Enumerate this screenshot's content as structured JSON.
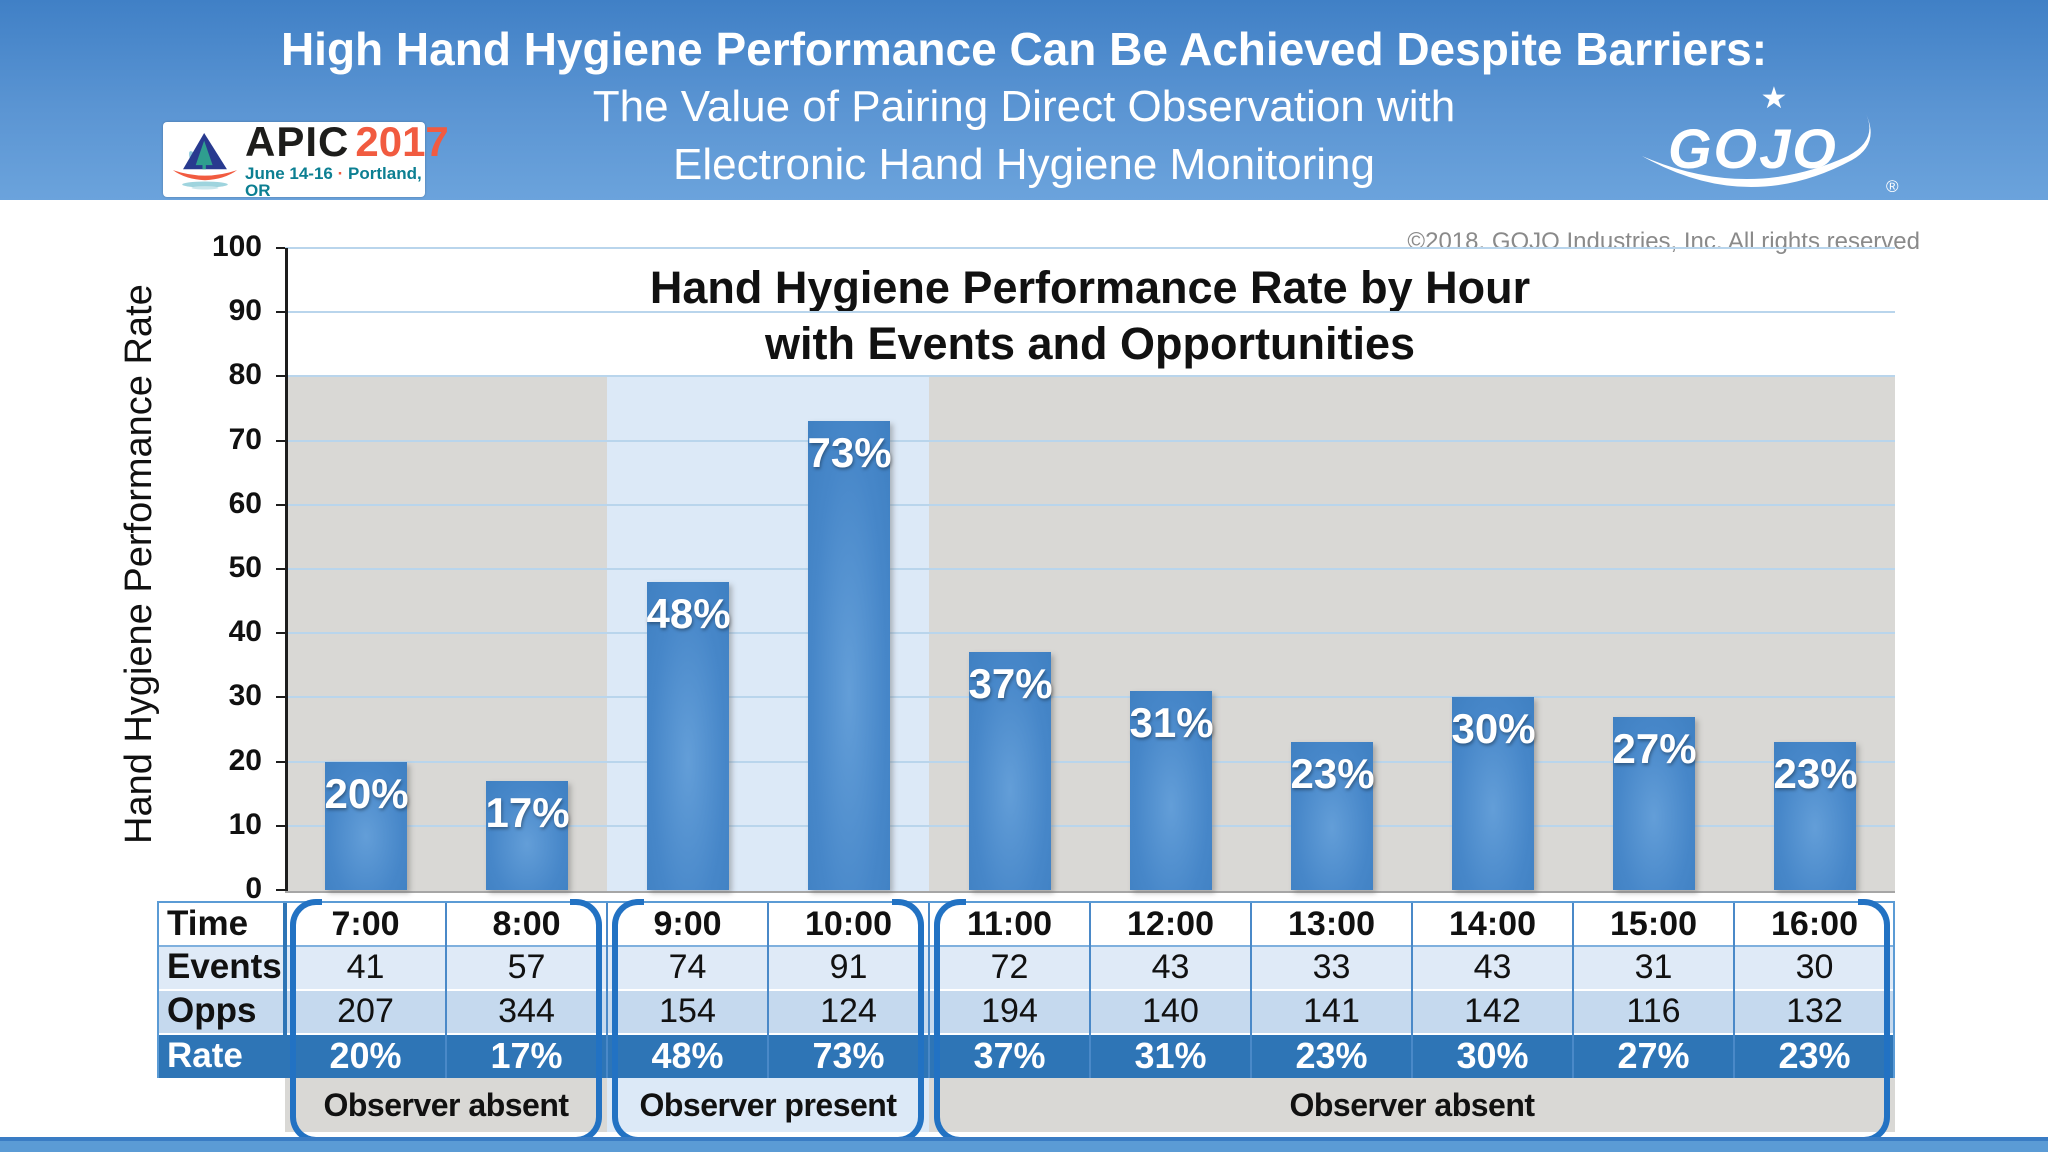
{
  "header": {
    "title1": "High Hand Hygiene Performance Can Be Achieved Despite Barriers:",
    "title2": "The Value of Pairing Direct Observation with",
    "title3": "Electronic Hand Hygiene Monitoring",
    "apic": {
      "name": "APIC",
      "year": "2017",
      "dates": "June 14-16",
      "separator": "·",
      "location": "Portland, OR"
    },
    "gojo": {
      "text": "GOJO",
      "star": "★",
      "registered": "®"
    }
  },
  "copyright": "©2018. GOJO Industries, Inc. All rights reserved",
  "chart_data": {
    "type": "bar",
    "title_line1": "Hand Hygiene Performance Rate by Hour",
    "title_line2": "with Events and Opportunities",
    "ylabel": "Hand Hygiene Performance Rate",
    "ylim": [
      0,
      100
    ],
    "yticks": [
      0,
      10,
      20,
      30,
      40,
      50,
      60,
      70,
      80,
      90,
      100
    ],
    "grid": true,
    "legend": "none",
    "categories": [
      "7:00",
      "8:00",
      "9:00",
      "10:00",
      "11:00",
      "12:00",
      "13:00",
      "14:00",
      "15:00",
      "16:00"
    ],
    "values": [
      20,
      17,
      48,
      73,
      37,
      31,
      23,
      30,
      27,
      23
    ],
    "bar_labels": [
      "20%",
      "17%",
      "48%",
      "73%",
      "37%",
      "31%",
      "23%",
      "30%",
      "27%",
      "23%"
    ],
    "events": [
      41,
      57,
      74,
      91,
      72,
      43,
      33,
      43,
      31,
      30
    ],
    "opportunities": [
      207,
      344,
      154,
      124,
      194,
      140,
      141,
      142,
      116,
      132
    ],
    "shaded_sections": [
      {
        "label": "Observer absent",
        "columns": [
          "7:00",
          "8:00"
        ],
        "shade": "gray"
      },
      {
        "label": "Observer present",
        "columns": [
          "9:00",
          "10:00"
        ],
        "shade": "blue"
      },
      {
        "label": "Observer absent",
        "columns": [
          "11:00",
          "12:00",
          "13:00",
          "14:00",
          "15:00",
          "16:00"
        ],
        "shade": "gray"
      }
    ]
  },
  "table": {
    "row_labels": [
      "Time",
      "Events",
      "Opps",
      "Rate"
    ],
    "rows": [
      [
        "7:00",
        "8:00",
        "9:00",
        "10:00",
        "11:00",
        "12:00",
        "13:00",
        "14:00",
        "15:00",
        "16:00"
      ],
      [
        "41",
        "57",
        "74",
        "91",
        "72",
        "43",
        "33",
        "43",
        "31",
        "30"
      ],
      [
        "207",
        "344",
        "154",
        "124",
        "194",
        "140",
        "141",
        "142",
        "116",
        "132"
      ],
      [
        "20%",
        "17%",
        "48%",
        "73%",
        "37%",
        "31%",
        "23%",
        "30%",
        "27%",
        "23%"
      ]
    ]
  },
  "groups": [
    {
      "label": "Observer absent",
      "start": 0,
      "end": 2,
      "shade": "gray"
    },
    {
      "label": "Observer present",
      "start": 2,
      "end": 4,
      "shade": "blue"
    },
    {
      "label": "Observer absent",
      "start": 4,
      "end": 10,
      "shade": "gray"
    }
  ],
  "colors": {
    "bar": "#4787c9",
    "grid": "#b9d5ec",
    "shade_gray": "#d9d8d5",
    "shade_blue": "#dce9f7",
    "row_events_bg": "#dfeaf7",
    "row_opps_bg": "#c5d9ee",
    "row_rate_bg": "#2e75b6",
    "bracket": "#2272c3",
    "header_top": "#4080c6",
    "header_bottom": "#6ba3dc",
    "strip": "#5b9bd5"
  }
}
